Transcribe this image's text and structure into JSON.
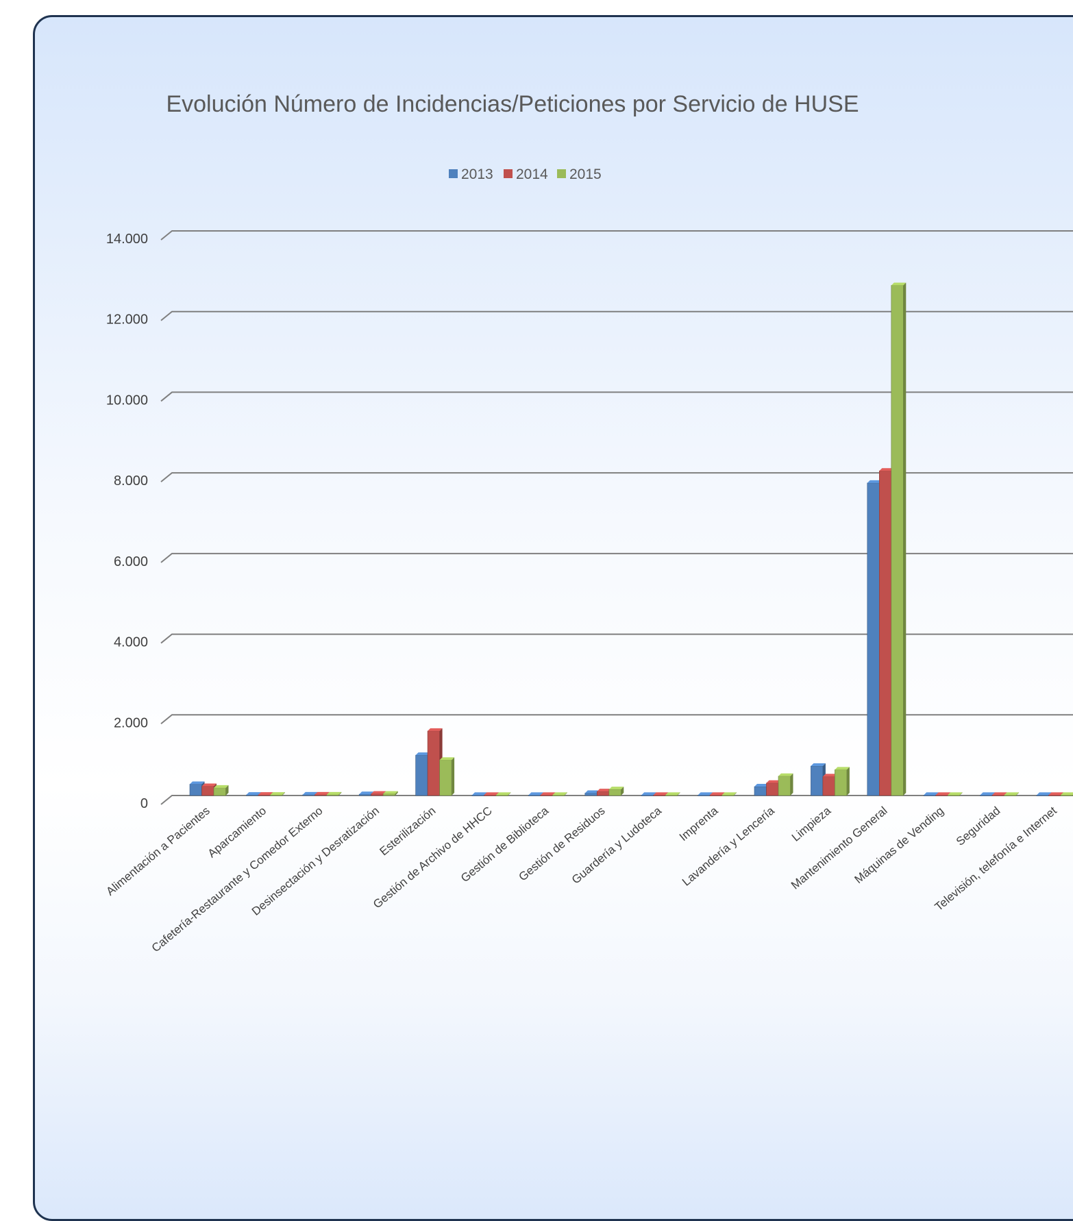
{
  "chart_data": {
    "type": "bar",
    "title": "Evolución Número de Incidencias/Peticiones por Servicio de HUSE",
    "categories": [
      "Alimentación a Pacientes",
      "Aparcamiento",
      "Cafetería-Restaurante y Comedor Externo",
      "Desinsectación y Desratización",
      "Esterilización",
      "Gestión de Archivo de HHCC",
      "Gestión de Biblioteca",
      "Gestión de Residuos",
      "Guardería y Ludoteca",
      "Imprenta",
      "Lavandería y Lencería",
      "Limpieza",
      "Mantenimiento General",
      "Máquinas de Vending",
      "Seguridad",
      "Televisión, telefonía e Internet"
    ],
    "series": [
      {
        "name": "2013",
        "color": "#4f81bd",
        "values": [
          280,
          15,
          20,
          30,
          1000,
          10,
          10,
          60,
          10,
          10,
          220,
          730,
          7750,
          10,
          10,
          10
        ]
      },
      {
        "name": "2014",
        "color": "#c0504d",
        "values": [
          230,
          15,
          20,
          40,
          1600,
          10,
          10,
          100,
          10,
          10,
          310,
          470,
          8050,
          10,
          10,
          10
        ]
      },
      {
        "name": "2015",
        "color": "#9bbb59",
        "values": [
          190,
          15,
          20,
          40,
          880,
          10,
          10,
          150,
          10,
          10,
          480,
          640,
          12650,
          10,
          10,
          10
        ]
      }
    ],
    "ylim": [
      0,
      14000
    ],
    "ytick_labels": [
      "0",
      "2.000",
      "4.000",
      "6.000",
      "8.000",
      "10.000",
      "12.000",
      "14.000"
    ],
    "xlabel": "",
    "ylabel": "",
    "grid": true,
    "legend_position": "top"
  }
}
